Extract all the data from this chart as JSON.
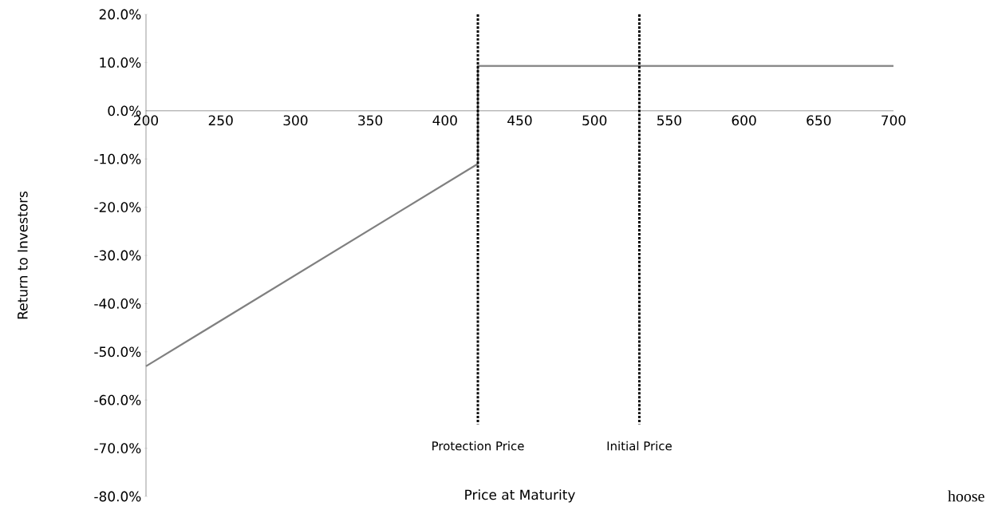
{
  "chart_data": {
    "type": "line",
    "xlabel": "Price at Maturity",
    "ylabel": "Return to Investors",
    "x": [
      200,
      422,
      422,
      700
    ],
    "series": [
      {
        "color": "#808080",
        "values": [
          -53.0,
          -11.0,
          9.3,
          9.3
        ]
      }
    ],
    "xlim": [
      200,
      700
    ],
    "xticks": [
      200,
      250,
      300,
      350,
      400,
      450,
      500,
      550,
      600,
      650,
      700
    ],
    "ylim": [
      -80,
      20
    ],
    "yticks": [
      {
        "value": -80,
        "label": "-80.0%"
      },
      {
        "value": -70,
        "label": "-70.0%"
      },
      {
        "value": -60,
        "label": "-60.0%"
      },
      {
        "value": -50,
        "label": "-50.0%"
      },
      {
        "value": -40,
        "label": "-40.0%"
      },
      {
        "value": -30,
        "label": "-30.0%"
      },
      {
        "value": -20,
        "label": "-20.0%"
      },
      {
        "value": -10,
        "label": "-10.0%"
      },
      {
        "value": 0,
        "label": "0.0%"
      },
      {
        "value": 10,
        "label": "10.0%"
      },
      {
        "value": 20,
        "label": "20.0%"
      }
    ],
    "ref_lines": [
      {
        "axis": "x",
        "value": 422,
        "label": "Protection  Price",
        "color": "#000000",
        "line_style": "dotted"
      },
      {
        "axis": "x",
        "value": 530,
        "label": "Initial Price",
        "color": "#000000",
        "line_style": "dotted"
      }
    ],
    "annotations": [
      "hoose"
    ],
    "grid": false,
    "marker": "none",
    "line_style": "solid"
  }
}
